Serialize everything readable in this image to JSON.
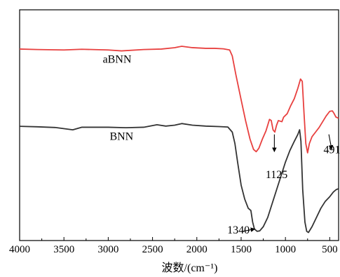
{
  "chart_data": {
    "type": "line",
    "title": "",
    "xlabel": "波数/(cm⁻¹)",
    "ylabel": "",
    "xlim": [
      4000,
      400
    ],
    "x_reversed": true,
    "x_ticks": [
      4000,
      3500,
      3000,
      2500,
      2000,
      1500,
      1000,
      500
    ],
    "y_ticks_shown": false,
    "grid": false,
    "legend": "none",
    "series": [
      {
        "name": "aBNN",
        "color": "#e8403f",
        "points": [
          [
            4000,
            0.83
          ],
          [
            3800,
            0.828
          ],
          [
            3500,
            0.826
          ],
          [
            3300,
            0.829
          ],
          [
            3000,
            0.826
          ],
          [
            2850,
            0.822
          ],
          [
            2600,
            0.828
          ],
          [
            2400,
            0.83
          ],
          [
            2250,
            0.836
          ],
          [
            2170,
            0.842
          ],
          [
            2050,
            0.836
          ],
          [
            1900,
            0.833
          ],
          [
            1800,
            0.833
          ],
          [
            1700,
            0.831
          ],
          [
            1630,
            0.826
          ],
          [
            1600,
            0.8
          ],
          [
            1560,
            0.72
          ],
          [
            1500,
            0.61
          ],
          [
            1450,
            0.52
          ],
          [
            1400,
            0.44
          ],
          [
            1360,
            0.395
          ],
          [
            1330,
            0.385
          ],
          [
            1300,
            0.4
          ],
          [
            1260,
            0.44
          ],
          [
            1220,
            0.475
          ],
          [
            1180,
            0.525
          ],
          [
            1160,
            0.52
          ],
          [
            1140,
            0.48
          ],
          [
            1120,
            0.47
          ],
          [
            1100,
            0.5
          ],
          [
            1080,
            0.52
          ],
          [
            1040,
            0.515
          ],
          [
            1020,
            0.535
          ],
          [
            980,
            0.55
          ],
          [
            940,
            0.585
          ],
          [
            900,
            0.615
          ],
          [
            860,
            0.66
          ],
          [
            830,
            0.7
          ],
          [
            810,
            0.69
          ],
          [
            790,
            0.55
          ],
          [
            770,
            0.42
          ],
          [
            750,
            0.38
          ],
          [
            730,
            0.42
          ],
          [
            700,
            0.45
          ],
          [
            660,
            0.47
          ],
          [
            620,
            0.49
          ],
          [
            580,
            0.515
          ],
          [
            540,
            0.54
          ],
          [
            500,
            0.56
          ],
          [
            470,
            0.562
          ],
          [
            450,
            0.55
          ],
          [
            430,
            0.535
          ],
          [
            400,
            0.53
          ]
        ]
      },
      {
        "name": "BNN",
        "color": "#333333",
        "points": [
          [
            4000,
            0.495
          ],
          [
            3800,
            0.493
          ],
          [
            3600,
            0.49
          ],
          [
            3400,
            0.48
          ],
          [
            3300,
            0.491
          ],
          [
            3000,
            0.491
          ],
          [
            2800,
            0.489
          ],
          [
            2600,
            0.491
          ],
          [
            2450,
            0.502
          ],
          [
            2350,
            0.496
          ],
          [
            2250,
            0.5
          ],
          [
            2170,
            0.507
          ],
          [
            2050,
            0.5
          ],
          [
            1900,
            0.496
          ],
          [
            1750,
            0.494
          ],
          [
            1650,
            0.492
          ],
          [
            1600,
            0.47
          ],
          [
            1570,
            0.42
          ],
          [
            1540,
            0.34
          ],
          [
            1500,
            0.24
          ],
          [
            1460,
            0.18
          ],
          [
            1420,
            0.14
          ],
          [
            1390,
            0.13
          ],
          [
            1370,
            0.08
          ],
          [
            1350,
            0.05
          ],
          [
            1320,
            0.04
          ],
          [
            1290,
            0.042
          ],
          [
            1250,
            0.06
          ],
          [
            1200,
            0.1
          ],
          [
            1150,
            0.16
          ],
          [
            1100,
            0.22
          ],
          [
            1050,
            0.28
          ],
          [
            1000,
            0.34
          ],
          [
            950,
            0.39
          ],
          [
            900,
            0.43
          ],
          [
            860,
            0.46
          ],
          [
            840,
            0.48
          ],
          [
            825,
            0.43
          ],
          [
            805,
            0.22
          ],
          [
            780,
            0.08
          ],
          [
            760,
            0.04
          ],
          [
            740,
            0.035
          ],
          [
            700,
            0.06
          ],
          [
            650,
            0.1
          ],
          [
            600,
            0.14
          ],
          [
            550,
            0.17
          ],
          [
            500,
            0.19
          ],
          [
            460,
            0.21
          ],
          [
            430,
            0.22
          ],
          [
            400,
            0.225
          ]
        ]
      }
    ],
    "annotations": [
      {
        "text": "aBNN",
        "anchor": [
          2900,
          0.77
        ],
        "kind": "label"
      },
      {
        "text": "BNN",
        "anchor": [
          2850,
          0.436
        ],
        "kind": "label"
      },
      {
        "text": "1125",
        "anchor": [
          1100,
          0.27
        ],
        "kind": "arrow-label",
        "arrow_from": [
          1125,
          0.46
        ],
        "arrow_to": [
          1125,
          0.385
        ]
      },
      {
        "text": "491",
        "anchor": [
          475,
          0.378
        ],
        "kind": "arrow-label",
        "arrow_from": [
          510,
          0.46
        ],
        "arrow_to": [
          478,
          0.395
        ]
      },
      {
        "text": "1340",
        "anchor": [
          1530,
          0.03
        ],
        "kind": "arrow-label",
        "arrow_from": [
          1480,
          0.04
        ],
        "arrow_to": [
          1345,
          0.05
        ]
      }
    ]
  }
}
